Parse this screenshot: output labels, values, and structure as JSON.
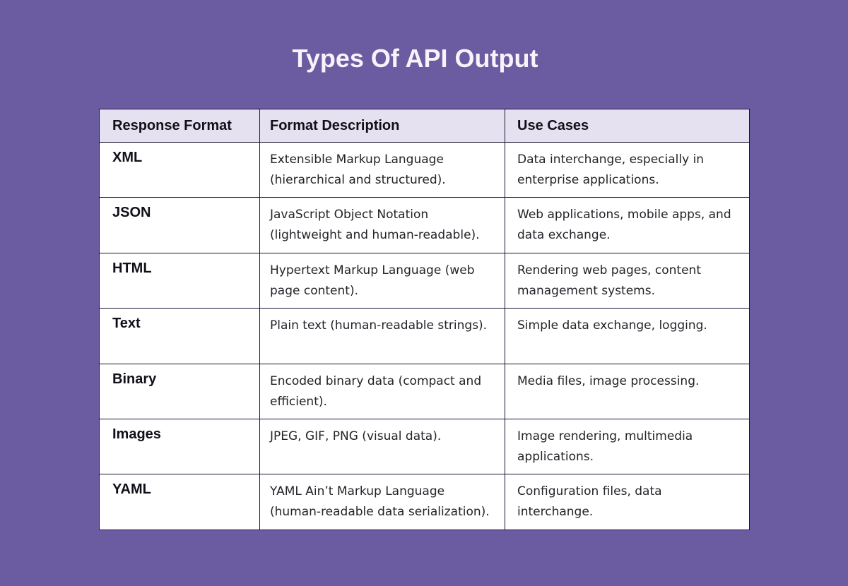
{
  "page": {
    "title": "Types Of API Output",
    "background_color": "#6B5CA1",
    "title_color": "#F6F3FA"
  },
  "table": {
    "border_color": "#1B1533",
    "header_background": "#E5E1F1",
    "body_background": "#FFFFFF",
    "columns": {
      "format": "Response Format",
      "description": "Format Description",
      "use_cases": "Use Cases"
    },
    "rows": [
      {
        "format": "XML",
        "description": "Extensible Markup Language\n(hierarchical and structured).",
        "use_cases": "Data interchange, especially in\nenterprise applications."
      },
      {
        "format": "JSON",
        "description": "JavaScript Object Notation\n(lightweight and human-readable).",
        "use_cases": "Web applications, mobile apps, and\ndata exchange."
      },
      {
        "format": "HTML",
        "description": "Hypertext Markup Language (web\npage content).",
        "use_cases": "Rendering web pages, content\nmanagement systems."
      },
      {
        "format": "Text",
        "description": "Plain text (human-readable strings).",
        "use_cases": "Simple data exchange, logging."
      },
      {
        "format": "Binary",
        "description": "Encoded binary data (compact and\nefficient).",
        "use_cases": "Media files, image processing."
      },
      {
        "format": "Images",
        "description": "JPEG, GIF, PNG (visual data).",
        "use_cases": "Image rendering, multimedia\napplications."
      },
      {
        "format": "YAML",
        "description": "YAML Ain’t Markup Language\n(human-readable data serialization).",
        "use_cases": "Configuration files, data\ninterchange."
      }
    ]
  }
}
